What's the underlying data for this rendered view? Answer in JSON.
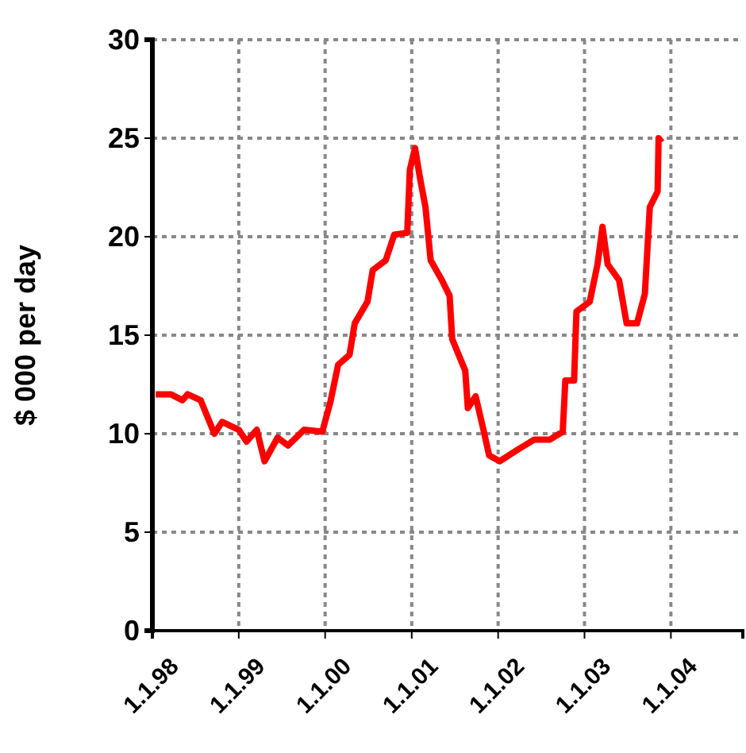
{
  "chart_data": {
    "type": "line",
    "ylabel": "$ 000 per day",
    "xlim": [
      "1998-01-01",
      "2004-10-31"
    ],
    "xticks": [
      {
        "value": "1998-01-01",
        "label": "1.1.98"
      },
      {
        "value": "1999-01-01",
        "label": "1.1.99"
      },
      {
        "value": "2000-01-01",
        "label": "1.1.00"
      },
      {
        "value": "2001-01-01",
        "label": "1.1.01"
      },
      {
        "value": "2002-01-01",
        "label": "1.1.02"
      },
      {
        "value": "2003-01-01",
        "label": "1.1.03"
      },
      {
        "value": "2004-01-01",
        "label": "1.1.04"
      }
    ],
    "ylim": [
      0,
      30
    ],
    "yticks": [
      0,
      5,
      10,
      15,
      20,
      25,
      30
    ],
    "grid": true,
    "line_style": "solid",
    "series": [
      {
        "color": "#ff0000",
        "x": [
          "1998-01-15",
          "1998-03-20",
          "1998-05-08",
          "1998-05-30",
          "1998-07-24",
          "1998-09-20",
          "1998-10-23",
          "1999-01-01",
          "1999-02-03",
          "1999-03-18",
          "1999-04-20",
          "1999-06-14",
          "1999-07-28",
          "1999-10-04",
          "1999-12-20",
          "2000-01-23",
          "2000-02-25",
          "2000-04-13",
          "2000-05-05",
          "2000-06-28",
          "2000-07-20",
          "2000-09-13",
          "2000-10-19",
          "2000-12-13",
          "2000-12-24",
          "2001-01-15",
          "2001-02-06",
          "2001-02-28",
          "2001-03-22",
          "2001-05-08",
          "2001-06-10",
          "2001-06-21",
          "2001-08-15",
          "2001-08-26",
          "2001-09-28",
          "2001-10-31",
          "2001-11-24",
          "2002-01-08",
          "2002-03-26",
          "2002-06-03",
          "2002-08-08",
          "2002-10-01",
          "2002-10-12",
          "2002-11-18",
          "2002-11-28",
          "2003-01-23",
          "2003-02-25",
          "2003-03-18",
          "2003-04-09",
          "2003-05-27",
          "2003-06-28",
          "2003-08-11",
          "2003-09-13",
          "2003-10-04",
          "2003-11-06",
          "2003-11-10",
          "2003-11-24"
        ],
        "values": [
          12.0,
          12.0,
          11.7,
          12.0,
          11.7,
          10.0,
          10.6,
          10.2,
          9.6,
          10.2,
          8.6,
          9.8,
          9.4,
          10.2,
          10.1,
          11.6,
          13.5,
          14.0,
          15.6,
          16.7,
          18.3,
          18.8,
          20.1,
          20.2,
          23.4,
          24.5,
          22.9,
          21.5,
          18.8,
          17.8,
          17.0,
          14.8,
          13.2,
          11.3,
          11.9,
          10.2,
          8.9,
          8.6,
          9.2,
          9.7,
          9.7,
          10.1,
          12.7,
          12.7,
          16.2,
          16.7,
          18.6,
          20.5,
          18.6,
          17.8,
          15.6,
          15.6,
          17.1,
          21.5,
          22.3,
          25.0,
          24.8
        ]
      }
    ]
  }
}
